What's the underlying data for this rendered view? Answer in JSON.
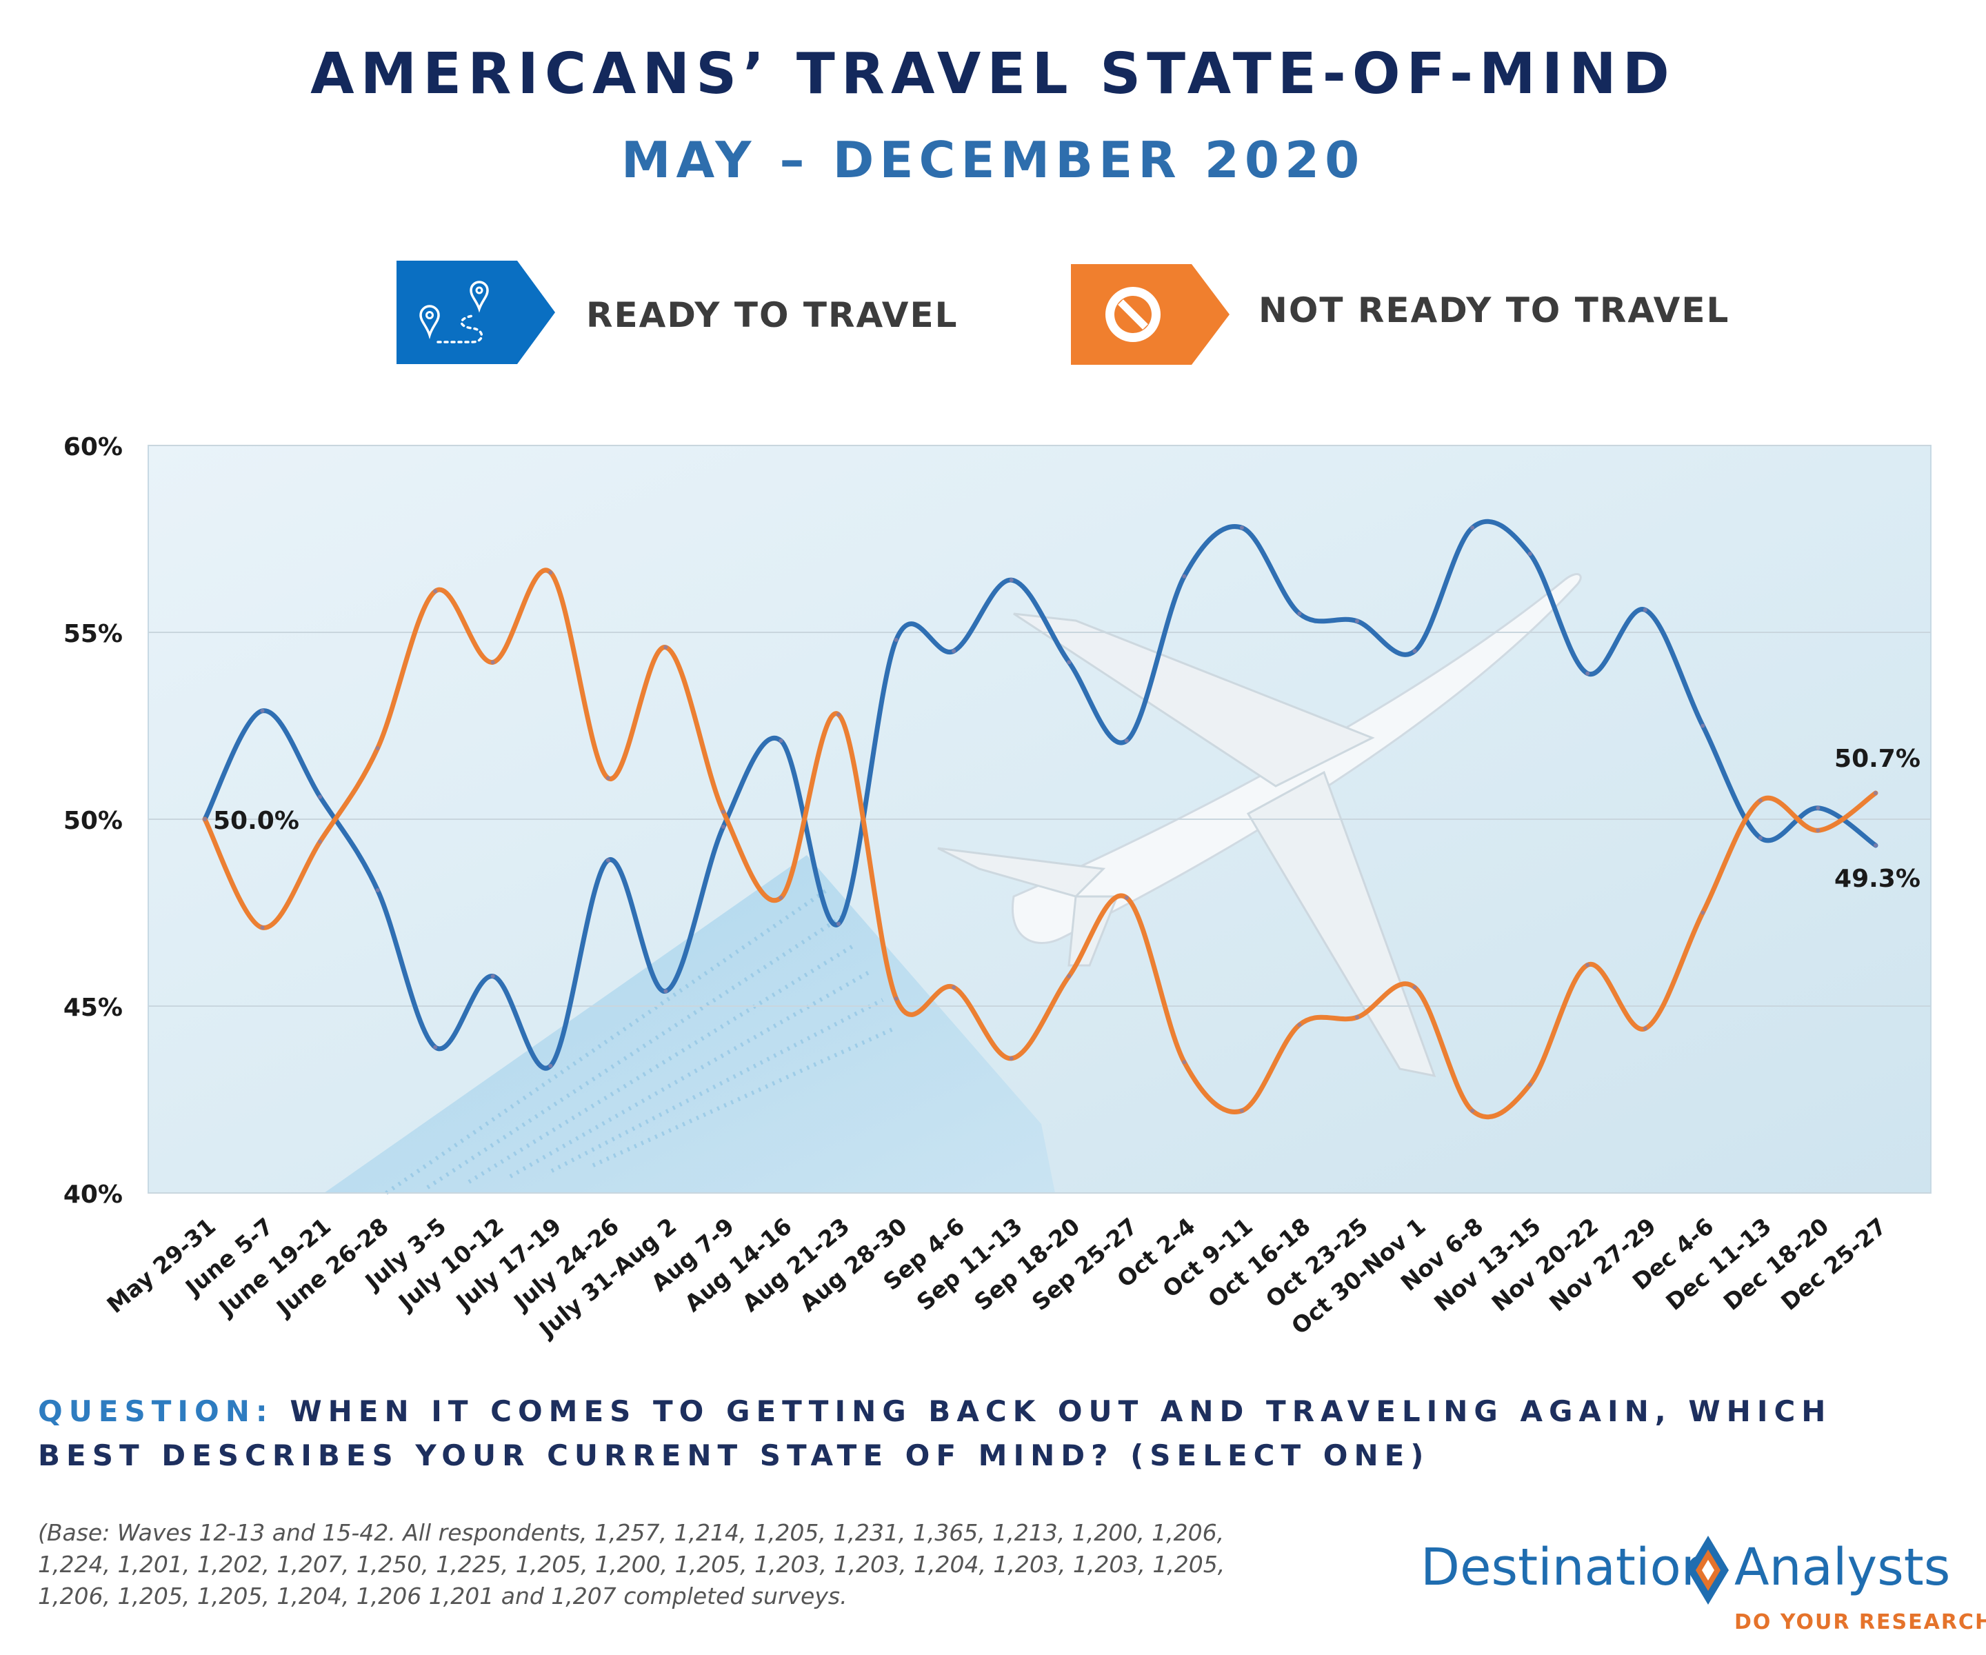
{
  "header": {
    "title": "AMERICANS’ TRAVEL STATE-OF-MIND",
    "subtitle": "MAY – DECEMBER 2020"
  },
  "legend": {
    "ready": {
      "label": "READY TO TRAVEL",
      "color": "#0a6fc2",
      "icon": "map-route-icon"
    },
    "not_ready": {
      "label": "NOT READY TO TRAVEL",
      "color": "#f07f2e",
      "icon": "prohibited-icon"
    }
  },
  "chart_data": {
    "type": "line",
    "smooth": true,
    "categories": [
      "May 29-31",
      "June 5-7",
      "June 19-21",
      "June 26-28",
      "July 3-5",
      "July 10-12",
      "July 17-19",
      "July 24-26",
      "July 31-Aug 2",
      "Aug 7-9",
      "Aug 14-16",
      "Aug 21-23",
      "Aug 28-30",
      "Sep 4-6",
      "Sep 11-13",
      "Sep 18-20",
      "Sep 25-27",
      "Oct 2-4",
      "Oct 9-11",
      "Oct 16-18",
      "Oct 23-25",
      "Oct 30-Nov 1",
      "Nov 6-8",
      "Nov 13-15",
      "Nov 20-22",
      "Nov 27-29",
      "Dec 4-6",
      "Dec 11-13",
      "Dec 18-20",
      "Dec 25-27"
    ],
    "series": [
      {
        "name": "READY TO TRAVEL",
        "color": "#2f6fb3",
        "values": [
          50.0,
          52.9,
          50.6,
          48.1,
          43.9,
          45.8,
          43.4,
          48.9,
          45.4,
          49.8,
          52.1,
          47.2,
          54.8,
          54.5,
          56.4,
          54.2,
          52.1,
          56.5,
          57.8,
          55.5,
          55.3,
          54.5,
          57.8,
          57.1,
          53.9,
          55.6,
          52.5,
          49.5,
          50.3,
          49.3
        ]
      },
      {
        "name": "NOT READY TO TRAVEL",
        "color": "#ec7f32",
        "values": [
          50.0,
          47.1,
          49.4,
          51.9,
          56.1,
          54.2,
          56.6,
          51.1,
          54.6,
          50.2,
          47.9,
          52.8,
          45.2,
          45.5,
          43.6,
          45.8,
          47.9,
          43.5,
          42.2,
          44.5,
          44.7,
          45.5,
          42.2,
          42.9,
          46.1,
          44.4,
          47.5,
          50.5,
          49.7,
          50.7
        ]
      }
    ],
    "ylim": [
      40,
      60
    ],
    "y_ticks": [
      "40%",
      "45%",
      "50%",
      "55%",
      "60%"
    ],
    "y_tick_values": [
      40,
      45,
      50,
      55,
      60
    ],
    "annotations": [
      {
        "text": "50.0%",
        "category": "May 29-31",
        "value": 50.0
      },
      {
        "text": "50.7%",
        "category": "Dec 25-27",
        "value": 50.7
      },
      {
        "text": "49.3%",
        "category": "Dec 25-27",
        "value": 49.3
      }
    ],
    "grid": true,
    "xlabel": "",
    "ylabel": ""
  },
  "question": {
    "label": "QUESTION:",
    "text": "WHEN IT COMES TO GETTING BACK OUT AND TRAVELING AGAIN, WHICH BEST DESCRIBES YOUR CURRENT STATE OF MIND? (SELECT ONE)"
  },
  "base_note": "(Base: Waves 12-13 and 15-42. All respondents, 1,257, 1,214, 1,205, 1,231, 1,365, 1,213, 1,200, 1,206, 1,224, 1,201, 1,202, 1,207, 1,250, 1,225, 1,205, 1,200, 1,205, 1,203, 1,203, 1,204, 1,203, 1,203, 1,205, 1,206, 1,205, 1,205, 1,204, 1,206 1,201 and 1,207 completed surveys.",
  "logo": {
    "name_left": "Destination",
    "name_right": "Analysts",
    "tagline": "DO YOUR RESEARCH"
  }
}
